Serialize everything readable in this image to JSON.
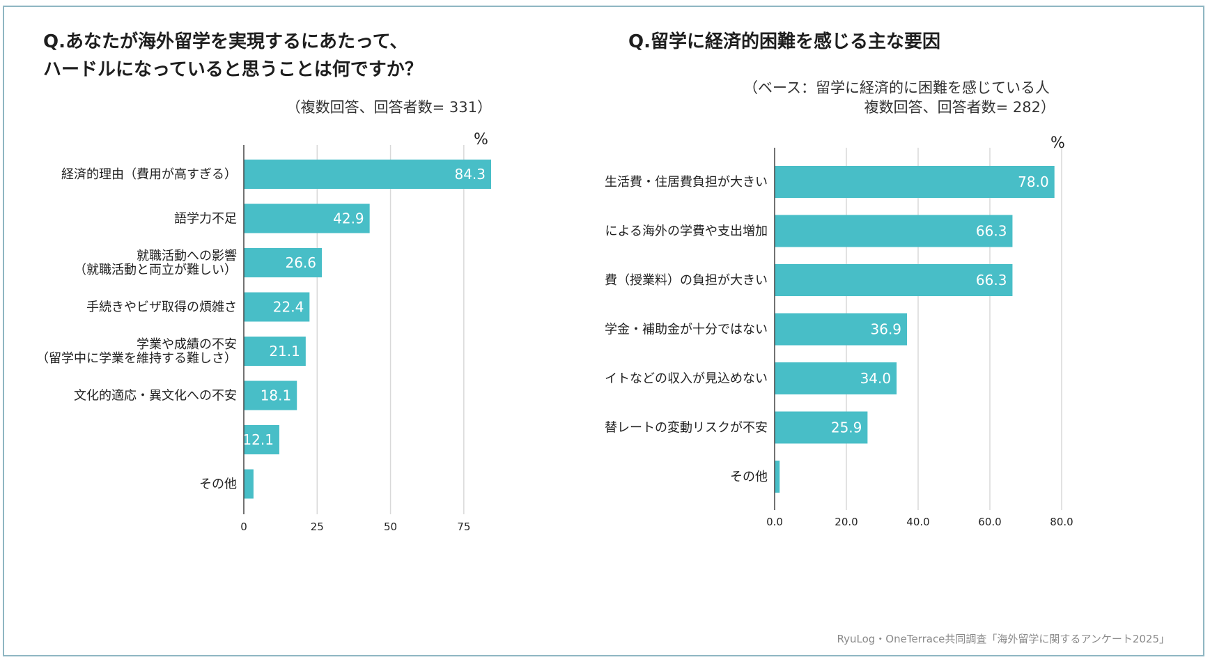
{
  "colors": {
    "bar": "#48bec7",
    "bar_label": "#ffffff",
    "grid": "#d9d9d9",
    "axis": "#444444",
    "border": "#8fb6c2"
  },
  "left": {
    "title_line1": "Q.あなたが海外留学を実現するにあたって、",
    "title_line2": "ハードルになっていると思うことは何ですか？",
    "note": "（複数回答、回答者数= 331）",
    "unit": "%"
  },
  "right": {
    "title": "Q.留学に経済的困難を感じる主な要因",
    "note_line1": "（ベース：留学に経済的に困難を感じている人",
    "note_line2": "複数回答、回答者数= 282）",
    "unit": "%"
  },
  "source": "RyuLog・OneTerrace共同調査「海外留学に関するアンケート2025」",
  "chart_data": [
    {
      "type": "bar",
      "orientation": "horizontal",
      "title": "Q.あなたが海外留学を実現するにあたって、ハードルになっていると思うことは何ですか？",
      "unit": "%",
      "categories": [
        [
          "経済的理由（費用が高すぎる）"
        ],
        [
          "語学力不足"
        ],
        [
          "就職活動への影響",
          "（就職活動と両立が難しい）"
        ],
        [
          "手続きやビザ取得の煩雑さ"
        ],
        [
          "学業や成績の不安",
          "（留学中に学業を維持する難しさ）"
        ],
        [
          "文化的適応・異文化への不安"
        ],
        [
          ""
        ],
        [
          "その他"
        ]
      ],
      "values": [
        84.3,
        42.9,
        26.6,
        22.4,
        21.1,
        18.1,
        12.1,
        3.3
      ],
      "value_labels": [
        "84.3",
        "42.9",
        "26.6",
        "22.4",
        "21.1",
        "18.1",
        "12.1",
        ""
      ],
      "xlim": [
        0,
        84.3
      ],
      "ticks": [
        0,
        25,
        50,
        75
      ],
      "tick_labels": [
        "0",
        "25",
        "50",
        "75"
      ]
    },
    {
      "type": "bar",
      "orientation": "horizontal",
      "title": "Q.留学に経済的困難を感じる主な要因",
      "unit": "%",
      "categories": [
        [
          "現地の生活費・住居費負担が大きい"
        ],
        [
          "円安による海外の学費や支出増加"
        ],
        [
          "学費（授業料）の負担が大きい"
        ],
        [
          "奨学金・補助金が十分ではない"
        ],
        [
          "アルバイトなどの収入が見込めない"
        ],
        [
          "為替レートの変動リスクが不安"
        ],
        [
          "その他"
        ]
      ],
      "values": [
        78.0,
        66.3,
        66.3,
        36.9,
        34.0,
        25.9,
        1.4
      ],
      "value_labels": [
        "78.0",
        "66.3",
        "66.3",
        "36.9",
        "34.0",
        "25.9",
        ""
      ],
      "xlim": [
        0,
        80
      ],
      "ticks": [
        0,
        20,
        40,
        60,
        80
      ],
      "tick_labels": [
        "0.0",
        "20.0",
        "40.0",
        "60.0",
        "80.0"
      ]
    }
  ]
}
